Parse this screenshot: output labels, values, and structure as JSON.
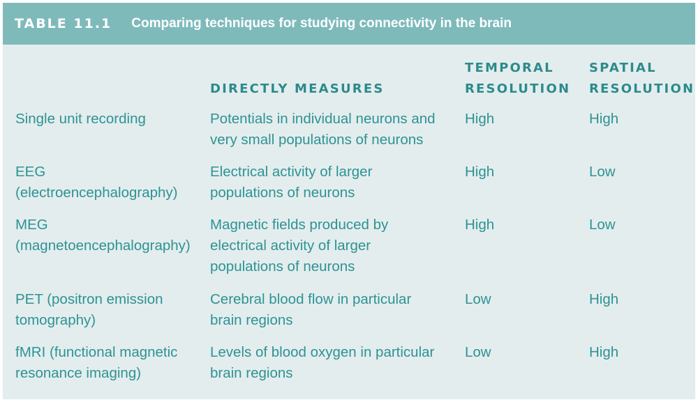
{
  "table": {
    "number": "TABLE 11.1",
    "title": "Comparing techniques for studying connectivity in the brain",
    "headers": {
      "technique": "",
      "measures": "DIRECTLY MEASURES",
      "temporal": "TEMPORAL\nRESOLUTION",
      "spatial": "SPATIAL\nRESOLUTION"
    },
    "rows": [
      {
        "technique": "Single unit recording",
        "measures": "Potentials in individual neurons and\nvery small populations of neurons",
        "temporal": "High",
        "spatial": "High"
      },
      {
        "technique": "EEG\n(electroencephalography)",
        "measures": "Electrical activity of larger\npopulations of neurons",
        "temporal": "High",
        "spatial": "Low"
      },
      {
        "technique": "MEG\n(magnetoencephalography)",
        "measures": "Magnetic fields produced by\nelectrical activity of larger\npopulations of neurons",
        "temporal": "High",
        "spatial": "Low"
      },
      {
        "technique": "PET (positron emission\ntomography)",
        "measures": "Cerebral blood flow in particular\nbrain regions",
        "temporal": "Low",
        "spatial": "High"
      },
      {
        "technique": "fMRI (functional magnetic\nresonance imaging)",
        "measures": "Levels of blood oxygen in particular\nbrain regions",
        "temporal": "Low",
        "spatial": "High"
      }
    ]
  },
  "colors": {
    "title_bar": "#7fbabb",
    "background": "#e3eded",
    "header_text": "#2c8a8c",
    "body_text": "#2f9294"
  }
}
